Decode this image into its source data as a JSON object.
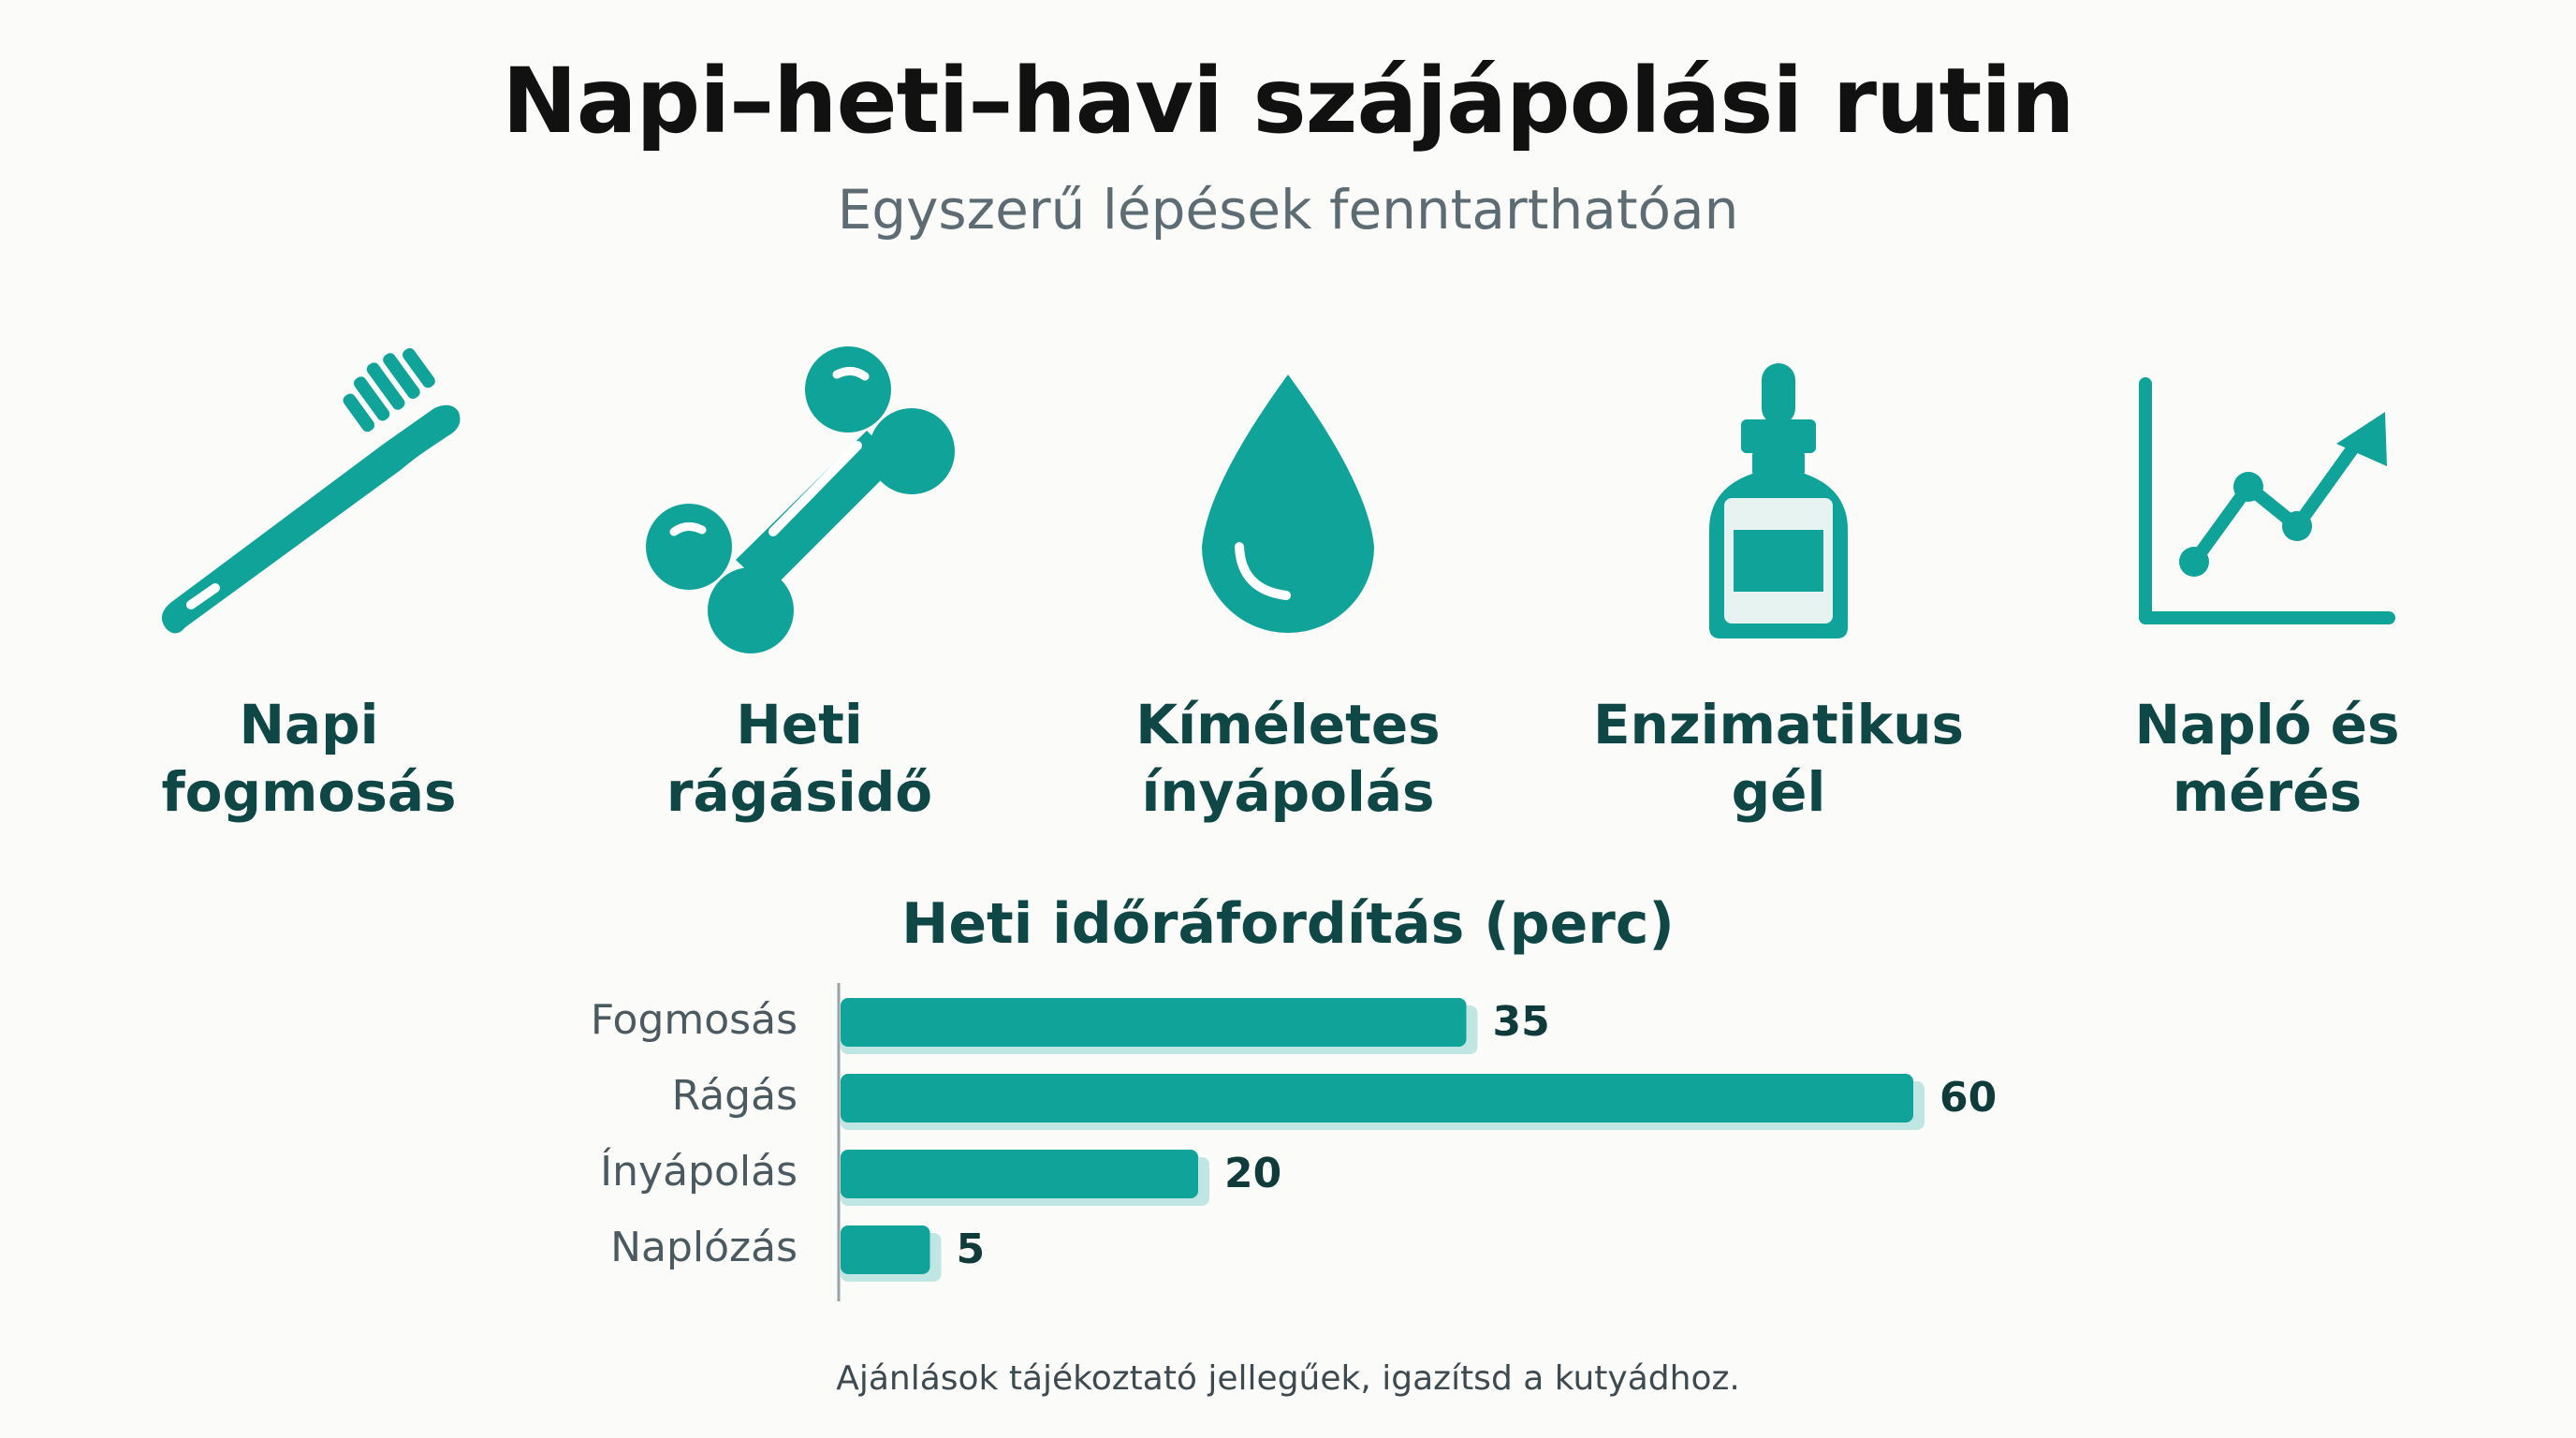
{
  "title": "Napi–heti–havi szájápolási rutin",
  "subtitle": "Egyszerű lépések fenntarthatóan",
  "colors": {
    "accent": "#10a39a",
    "accent_light": "#bfe6e2",
    "text_dark": "#0f4746"
  },
  "icons": [
    {
      "icon": "toothbrush-icon",
      "label": "Napi\nfogmosás"
    },
    {
      "icon": "bone-icon",
      "label": "Heti\nrágásidő"
    },
    {
      "icon": "water-drop-icon",
      "label": "Kíméletes\nínyápolás"
    },
    {
      "icon": "dropper-bottle-icon",
      "label": "Enzimatikus\ngél"
    },
    {
      "icon": "trend-chart-icon",
      "label": "Napló és\nmérés"
    }
  ],
  "chart_data": {
    "type": "bar",
    "orientation": "horizontal",
    "title": "Heti időráfordítás (perc)",
    "categories": [
      "Fogmosás",
      "Rágás",
      "Ínyápolás",
      "Naplózás"
    ],
    "values": [
      35,
      60,
      20,
      5
    ],
    "xlim": [
      0,
      60
    ],
    "grid": false
  },
  "footnote": "Ajánlások tájékoztató jellegűek, igazítsd a kutyádhoz."
}
